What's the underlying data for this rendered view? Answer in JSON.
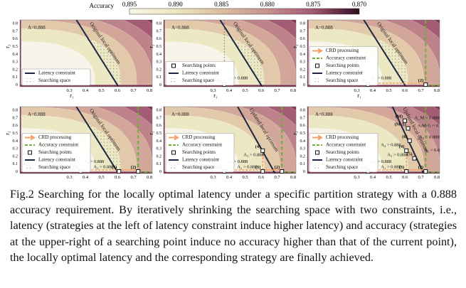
{
  "colorbar": {
    "title": "Accuracy",
    "ticks": [
      "0.895",
      "0.890",
      "0.885",
      "0.880",
      "0.875",
      "0.870"
    ]
  },
  "axes": {
    "xlabel": "r₁",
    "ylabel": "r₂",
    "xticks": [
      "0.3",
      "0.4",
      "0.5",
      "0.6",
      "0.7",
      "0.8"
    ],
    "yticks": [
      "0",
      "0.1",
      "0.2",
      "0.3",
      "0.4",
      "0.5",
      "0.6",
      "0.7",
      "0.8"
    ]
  },
  "panels": [
    {
      "contour_label": "A=0.888",
      "optimum": "Original local optimum",
      "legend": [
        "Latency constraint",
        "Searching space"
      ],
      "points": [],
      "notes": []
    },
    {
      "contour_label": "A=0.888",
      "optimum": "Original local optimum",
      "legend": [
        "Searching points",
        "Latency constraint",
        "Searching space"
      ],
      "points": [
        "(1)"
      ],
      "notes": [
        "A₁ > 0.888"
      ]
    },
    {
      "contour_label": "A=0.888",
      "optimum": "Original local optimum",
      "legend": [
        "CRD processing",
        "Accuracy constraint",
        "Searching points",
        "Latency constraint",
        "Searching space"
      ],
      "points": [
        "(1)",
        "(2)"
      ],
      "notes": [
        "A₁ > 0.888"
      ]
    },
    {
      "contour_label": "A=0.888",
      "optimum": "Original local optimum",
      "legend": [
        "CRD processing",
        "Accuracy constraint",
        "Searching points",
        "Latency constraint",
        "Searching space"
      ],
      "points": [
        "(1)",
        "(2)",
        "(3)"
      ],
      "notes": [
        "A₁ > 0.888",
        "A₂ > 0.888"
      ]
    },
    {
      "contour_label": "A=0.888",
      "optimum": "Updated local optimum",
      "legend": [
        "CRD processing",
        "Accuracy constraint",
        "Searching points",
        "Latency constraint",
        "Searching space"
      ],
      "points": [
        "(1)",
        "(2)",
        "(3)",
        "(4)"
      ],
      "notes": [
        "A₁ > 0.888",
        "A₂ > 0.888",
        "A₃ > 0.888"
      ]
    },
    {
      "contour_label": "A=0.888",
      "optimum": "Updated local optimum",
      "legend": [
        "CRD processing",
        "Accuracy constraint",
        "Searching points",
        "Latency constraint",
        "Searching space"
      ],
      "points": [
        "(1)",
        "(2)",
        "(3)",
        "(4)",
        "(5)",
        "(6)",
        "(M-1)",
        "(M)"
      ],
      "notes": [
        "A₁ > 0.888",
        "A₂ > 0.888",
        "A₃ > 0.888",
        "A₄ > 0.888",
        "A₅ > 0.888",
        "A₆ < 0.888",
        "A₍M-1₎ < 0.888",
        "A_M < 0.888"
      ]
    }
  ],
  "caption": "Fig.2 Searching for the locally optimal latency under a specific partition strategy with a 0.888 accuracy requirement. By iteratively shrinking the searching space with two constraints, i.e., latency (strategies at the left of latency constraint induce higher latency) and accuracy (strategies at the upper-right of a searching point induce no accuracy higher than that of the current point), the locally optimal latency and the corresponding strategy are finally achieved."
}
